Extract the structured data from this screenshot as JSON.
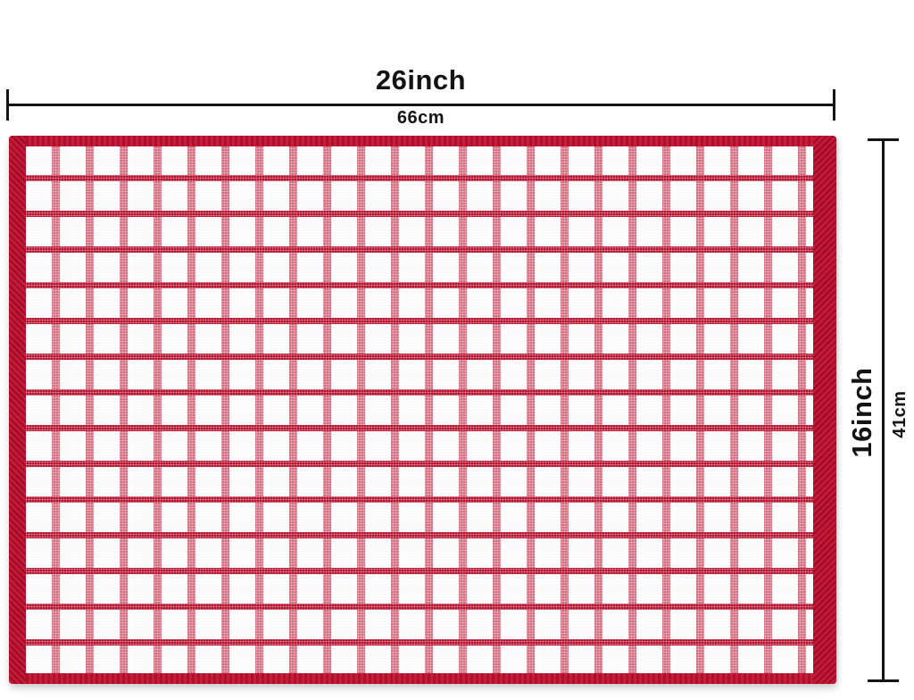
{
  "diagram": {
    "subject": "Red and white checkered terry kitchen towel with size measurements",
    "pattern": "red windowpane check on white with red selvage edges"
  },
  "dimensions": {
    "width": {
      "inches": "26inch",
      "cm": "66cm"
    },
    "height": {
      "inches": "16inch",
      "cm": "41cm"
    }
  },
  "colors": {
    "towel_red_dark": "#9d0c24",
    "towel_red": "#b5132f",
    "towel_red_light": "#c41a39",
    "towel_white": "#fbfafa",
    "dimension_line": "#141414",
    "page_background": "#ffffff"
  }
}
